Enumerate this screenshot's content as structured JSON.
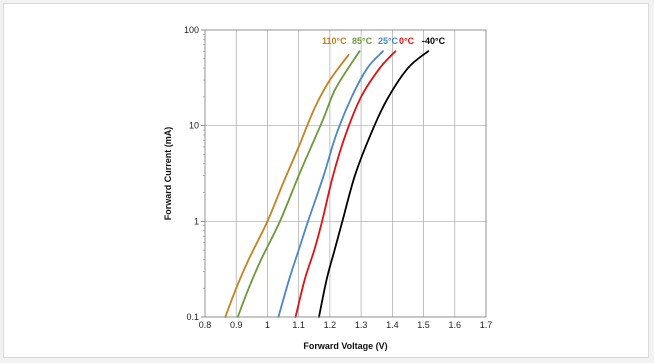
{
  "chart_data": {
    "type": "line",
    "title": "",
    "xlabel": "Forward Voltage (V)",
    "ylabel": "Forward Current (mA)",
    "xlim": [
      0.8,
      1.7
    ],
    "ylim": [
      0.1,
      100
    ],
    "y_scale": "log",
    "x_ticks": [
      "0.8",
      "0.9",
      "1",
      "1.1",
      "1.2",
      "1.3",
      "1.4",
      "1.5",
      "1.6",
      "1.7"
    ],
    "y_ticks": [
      "0.1",
      "1",
      "10",
      "100"
    ],
    "grid": true,
    "legend_placement": "inline-top",
    "series": [
      {
        "name": "110°C",
        "color": "#c7811e",
        "points": [
          [
            0.865,
            0.1
          ],
          [
            0.9,
            0.2
          ],
          [
            0.94,
            0.4
          ],
          [
            1.0,
            1.0
          ],
          [
            1.05,
            2.5
          ],
          [
            1.1,
            6.0
          ],
          [
            1.15,
            15.0
          ],
          [
            1.2,
            30.0
          ],
          [
            1.26,
            55.0
          ]
        ]
      },
      {
        "name": "85°C",
        "color": "#6a9a3a",
        "points": [
          [
            0.905,
            0.1
          ],
          [
            0.94,
            0.2
          ],
          [
            0.98,
            0.4
          ],
          [
            1.04,
            1.0
          ],
          [
            1.1,
            3.0
          ],
          [
            1.14,
            6.0
          ],
          [
            1.18,
            12.0
          ],
          [
            1.22,
            25.0
          ],
          [
            1.295,
            60.0
          ]
        ]
      },
      {
        "name": "25°C",
        "color": "#4a86c8",
        "points": [
          [
            1.035,
            0.1
          ],
          [
            1.07,
            0.25
          ],
          [
            1.1,
            0.5
          ],
          [
            1.13,
            1.0
          ],
          [
            1.18,
            3.0
          ],
          [
            1.22,
            8.0
          ],
          [
            1.27,
            20.0
          ],
          [
            1.32,
            40.0
          ],
          [
            1.37,
            60.0
          ]
        ]
      },
      {
        "name": "0°C",
        "color": "#e01010",
        "points": [
          [
            1.09,
            0.1
          ],
          [
            1.12,
            0.25
          ],
          [
            1.15,
            0.5
          ],
          [
            1.175,
            1.0
          ],
          [
            1.21,
            3.0
          ],
          [
            1.25,
            8.0
          ],
          [
            1.3,
            20.0
          ],
          [
            1.36,
            40.0
          ],
          [
            1.41,
            60.0
          ]
        ]
      },
      {
        "name": "-40°C",
        "color": "#000000",
        "points": [
          [
            1.165,
            0.1
          ],
          [
            1.19,
            0.25
          ],
          [
            1.215,
            0.5
          ],
          [
            1.24,
            1.0
          ],
          [
            1.28,
            3.0
          ],
          [
            1.33,
            8.0
          ],
          [
            1.38,
            18.0
          ],
          [
            1.45,
            40.0
          ],
          [
            1.515,
            60.0
          ]
        ]
      }
    ]
  }
}
